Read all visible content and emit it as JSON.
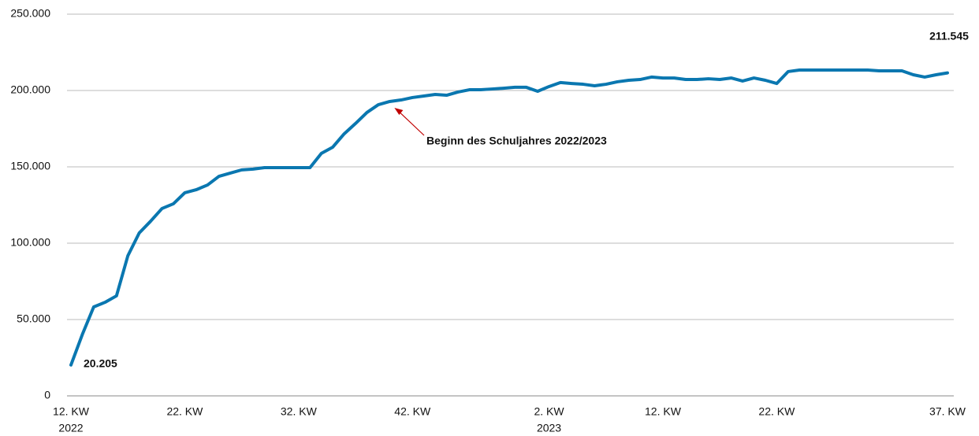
{
  "chart_data": {
    "type": "line",
    "categories": [
      "12. KW",
      null,
      null,
      null,
      null,
      null,
      null,
      null,
      null,
      null,
      "22. KW",
      null,
      null,
      null,
      null,
      null,
      null,
      null,
      null,
      null,
      "32. KW",
      null,
      null,
      null,
      null,
      null,
      null,
      null,
      null,
      null,
      "42. KW",
      null,
      null,
      null,
      null,
      null,
      null,
      null,
      null,
      null,
      null,
      null,
      "2. KW",
      null,
      null,
      null,
      null,
      null,
      null,
      null,
      null,
      null,
      "12. KW",
      null,
      null,
      null,
      null,
      null,
      null,
      null,
      null,
      null,
      "22. KW",
      null,
      null,
      null,
      null,
      null,
      null,
      null,
      null,
      null,
      null,
      null,
      null,
      null,
      null,
      "37. KW"
    ],
    "x_group_labels": [
      "2022",
      "2023"
    ],
    "series": [
      {
        "color": "#0a77b0",
        "values": [
          20205,
          40200,
          58250,
          61300,
          65500,
          91750,
          106700,
          114400,
          122700,
          125800,
          133000,
          135000,
          138100,
          143800,
          145900,
          148000,
          148500,
          149500,
          149500,
          149500,
          149500,
          149500,
          158800,
          162900,
          171600,
          178400,
          185600,
          190700,
          192800,
          193800,
          195400,
          196400,
          197400,
          196900,
          199000,
          200500,
          200500,
          201000,
          201500,
          202100,
          202100,
          199500,
          202600,
          205200,
          204600,
          204100,
          203100,
          204100,
          205700,
          206700,
          207200,
          208800,
          208200,
          208200,
          207200,
          207200,
          207700,
          207200,
          208200,
          206200,
          208200,
          206700,
          204600,
          212400,
          213400,
          213400,
          213400,
          213400,
          213400,
          213400,
          213400,
          212900,
          212900,
          212900,
          210300,
          208800,
          210300,
          211545
        ],
        "value_labels": [
          "20.205",
          null,
          null,
          null,
          null,
          null,
          null,
          null,
          null,
          null,
          null,
          null,
          null,
          null,
          null,
          null,
          null,
          null,
          null,
          null,
          null,
          null,
          null,
          null,
          null,
          null,
          null,
          null,
          null,
          null,
          null,
          null,
          null,
          null,
          null,
          null,
          null,
          null,
          null,
          null,
          null,
          null,
          null,
          null,
          null,
          null,
          null,
          null,
          null,
          null,
          null,
          null,
          null,
          null,
          null,
          null,
          null,
          null,
          null,
          null,
          null,
          null,
          null,
          null,
          null,
          null,
          null,
          null,
          null,
          null,
          null,
          null,
          null,
          null,
          null,
          null,
          null,
          "211.545"
        ]
      }
    ],
    "annotations": [
      "Beginn des Schuljahres 2022/2023"
    ],
    "annotation_color": "#c00000",
    "ylim": [
      0,
      250000
    ],
    "yticks": [
      0,
      {
        "value": 50000,
        "label": "50.000"
      },
      {
        "value": 100000,
        "label": "100.000"
      },
      {
        "value": 150000,
        "label": "150.000"
      },
      {
        "value": 200000,
        "label": "200.000"
      },
      {
        "value": 250000,
        "label": "250.000"
      }
    ],
    "grid": true
  }
}
